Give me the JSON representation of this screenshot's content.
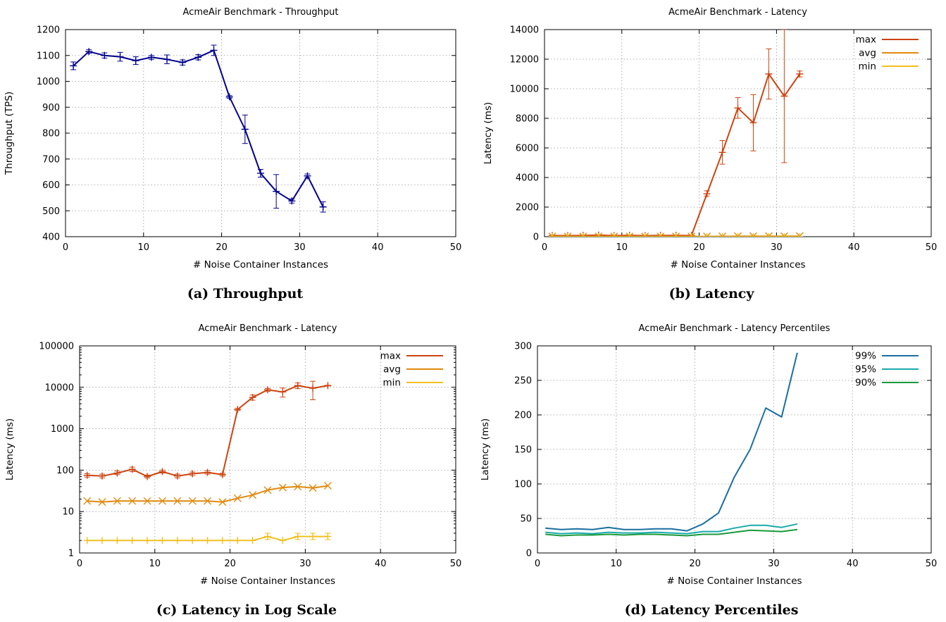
{
  "captions": {
    "a": "(a) Throughput",
    "b": "(b) Latency",
    "c": "(c) Latency in Log Scale",
    "d": "(d) Latency Percentiles"
  },
  "chart_data": [
    {
      "id": "throughput",
      "type": "line",
      "title": "AcmeAir Benchmark - Throughput",
      "xlabel": "# Noise Container Instances",
      "ylabel": "Throughput (TPS)",
      "xlim": [
        0,
        50
      ],
      "ylim": [
        400,
        1200
      ],
      "yscale": "linear",
      "xticks": [
        "0",
        "10",
        "20",
        "30",
        "40",
        "50"
      ],
      "yticks": [
        "400",
        "500",
        "600",
        "700",
        "800",
        "900",
        "1000",
        "1100",
        "1200"
      ],
      "grid": true,
      "legend": null,
      "series": [
        {
          "color": "#00008b",
          "marker": "plus",
          "x": [
            1,
            3,
            5,
            7,
            9,
            11,
            13,
            15,
            17,
            19,
            21,
            23,
            25,
            27,
            29,
            31,
            33
          ],
          "y": [
            1060,
            1115,
            1100,
            1095,
            1080,
            1093,
            1085,
            1073,
            1093,
            1120,
            940,
            815,
            645,
            575,
            538,
            635,
            515
          ],
          "err_low": [
            1045,
            1108,
            1090,
            1078,
            1065,
            1085,
            1068,
            1063,
            1083,
            1100,
            935,
            760,
            630,
            510,
            530,
            628,
            495
          ],
          "err_high": [
            1075,
            1122,
            1110,
            1112,
            1095,
            1100,
            1102,
            1083,
            1103,
            1140,
            945,
            870,
            660,
            640,
            546,
            642,
            535
          ]
        }
      ]
    },
    {
      "id": "latency",
      "type": "line",
      "title": "AcmeAir Benchmark - Latency",
      "xlabel": "# Noise Container Instances",
      "ylabel": "Latency (ms)",
      "xlim": [
        0,
        50
      ],
      "ylim": [
        0,
        14000
      ],
      "yscale": "linear",
      "xticks": [
        "0",
        "10",
        "20",
        "30",
        "40",
        "50"
      ],
      "yticks": [
        "0",
        "2000",
        "4000",
        "6000",
        "8000",
        "10000",
        "12000",
        "14000"
      ],
      "grid": true,
      "legend": "top-right",
      "series": [
        {
          "name": "max",
          "color": "#cc4411",
          "marker": "plus",
          "x": [
            1,
            3,
            5,
            7,
            9,
            11,
            13,
            15,
            17,
            19,
            21,
            23,
            25,
            27,
            29,
            31,
            33
          ],
          "y": [
            75,
            72,
            85,
            105,
            70,
            92,
            72,
            82,
            88,
            78,
            2900,
            5700,
            8700,
            7700,
            11000,
            9500,
            11000
          ],
          "err_low": [
            null,
            null,
            null,
            null,
            null,
            null,
            null,
            null,
            null,
            null,
            2750,
            4900,
            8000,
            5800,
            9300,
            5000,
            10800
          ],
          "err_high": [
            null,
            null,
            null,
            null,
            null,
            null,
            null,
            null,
            null,
            null,
            3100,
            6500,
            9400,
            9600,
            12700,
            14000,
            11200
          ]
        },
        {
          "name": "avg",
          "color": "#e08a10",
          "marker": "x",
          "x": [
            1,
            3,
            5,
            7,
            9,
            11,
            13,
            15,
            17,
            19,
            21,
            23,
            25,
            27,
            29,
            31,
            33
          ],
          "y": [
            18,
            17,
            18,
            18,
            18,
            18,
            18,
            18,
            18,
            17,
            21,
            25,
            33,
            38,
            40,
            37,
            42
          ]
        },
        {
          "name": "min",
          "color": "#f0c020",
          "marker": "plus",
          "x": [
            1,
            3,
            5,
            7,
            9,
            11,
            13,
            15,
            17,
            19,
            21,
            23,
            25,
            27,
            29,
            31,
            33
          ],
          "y": [
            2,
            2,
            2,
            2,
            2,
            2,
            2,
            2,
            2,
            2,
            2,
            2,
            2.5,
            2,
            2.5,
            2.5,
            2.5
          ]
        }
      ]
    },
    {
      "id": "latency-log",
      "type": "line",
      "title": "AcmeAir Benchmark - Latency",
      "xlabel": "# Noise Container Instances",
      "ylabel": "Latency (ms)",
      "xlim": [
        0,
        50
      ],
      "ylim": [
        1,
        100000
      ],
      "yscale": "log",
      "xticks": [
        "0",
        "10",
        "20",
        "30",
        "40",
        "50"
      ],
      "yticks": [
        "1",
        "10",
        "100",
        "1000",
        "10000",
        "100000"
      ],
      "grid": true,
      "legend": "top-right",
      "series": [
        {
          "name": "max",
          "color": "#cc4411",
          "marker": "plus",
          "x": [
            1,
            3,
            5,
            7,
            9,
            11,
            13,
            15,
            17,
            19,
            21,
            23,
            25,
            27,
            29,
            31,
            33
          ],
          "y": [
            75,
            72,
            85,
            105,
            70,
            92,
            72,
            82,
            88,
            78,
            2900,
            5700,
            8700,
            7700,
            11000,
            9500,
            11000
          ],
          "err_low": [
            68,
            65,
            78,
            92,
            65,
            85,
            65,
            74,
            80,
            72,
            2750,
            4900,
            8000,
            5800,
            9300,
            5000,
            10800
          ],
          "err_high": [
            82,
            80,
            95,
            118,
            76,
            100,
            80,
            90,
            96,
            84,
            3100,
            6500,
            9400,
            9600,
            12700,
            14000,
            11200
          ]
        },
        {
          "name": "avg",
          "color": "#e08a10",
          "marker": "x",
          "x": [
            1,
            3,
            5,
            7,
            9,
            11,
            13,
            15,
            17,
            19,
            21,
            23,
            25,
            27,
            29,
            31,
            33
          ],
          "y": [
            18,
            17,
            18,
            18,
            18,
            18,
            18,
            18,
            18,
            17,
            21,
            25,
            33,
            38,
            40,
            37,
            42
          ]
        },
        {
          "name": "min",
          "color": "#f0c020",
          "marker": "plus",
          "x": [
            1,
            3,
            5,
            7,
            9,
            11,
            13,
            15,
            17,
            19,
            21,
            23,
            25,
            27,
            29,
            31,
            33
          ],
          "y": [
            2,
            2,
            2,
            2,
            2,
            2,
            2,
            2,
            2,
            2,
            2,
            2,
            2.5,
            2,
            2.5,
            2.5,
            2.5
          ],
          "err_low": [
            null,
            null,
            null,
            null,
            null,
            null,
            null,
            null,
            null,
            null,
            null,
            null,
            2.1,
            null,
            2.1,
            2.1,
            2.1
          ],
          "err_high": [
            null,
            null,
            null,
            null,
            null,
            null,
            null,
            null,
            null,
            null,
            null,
            null,
            3.0,
            null,
            3.0,
            3.0,
            3.0
          ]
        }
      ]
    },
    {
      "id": "percentiles",
      "type": "line",
      "title": "AcmeAir Benchmark - Latency Percentiles",
      "xlabel": "# Noise Container Instances",
      "ylabel": "Latency (ms)",
      "xlim": [
        0,
        50
      ],
      "ylim": [
        0,
        300
      ],
      "yscale": "linear",
      "xticks": [
        "0",
        "10",
        "20",
        "30",
        "40",
        "50"
      ],
      "yticks": [
        "0",
        "50",
        "100",
        "150",
        "200",
        "250",
        "300"
      ],
      "grid": true,
      "legend": "top-right",
      "series": [
        {
          "name": "99%",
          "color": "#1a6fa0",
          "marker": "none",
          "x": [
            1,
            3,
            5,
            7,
            9,
            11,
            13,
            15,
            17,
            19,
            21,
            23,
            25,
            27,
            29,
            31,
            33
          ],
          "y": [
            36,
            34,
            35,
            34,
            37,
            34,
            34,
            35,
            35,
            32,
            42,
            58,
            110,
            150,
            210,
            197,
            290
          ]
        },
        {
          "name": "95%",
          "color": "#1aaaaa",
          "marker": "none",
          "x": [
            1,
            3,
            5,
            7,
            9,
            11,
            13,
            15,
            17,
            19,
            21,
            23,
            25,
            27,
            29,
            31,
            33
          ],
          "y": [
            30,
            28,
            29,
            28,
            30,
            29,
            29,
            30,
            29,
            28,
            31,
            31,
            36,
            40,
            40,
            37,
            42
          ]
        },
        {
          "name": "90%",
          "color": "#1a9a3a",
          "marker": "none",
          "x": [
            1,
            3,
            5,
            7,
            9,
            11,
            13,
            15,
            17,
            19,
            21,
            23,
            25,
            27,
            29,
            31,
            33
          ],
          "y": [
            27,
            25,
            26,
            26,
            27,
            26,
            27,
            27,
            26,
            25,
            27,
            27,
            30,
            33,
            32,
            31,
            34
          ]
        }
      ]
    }
  ]
}
